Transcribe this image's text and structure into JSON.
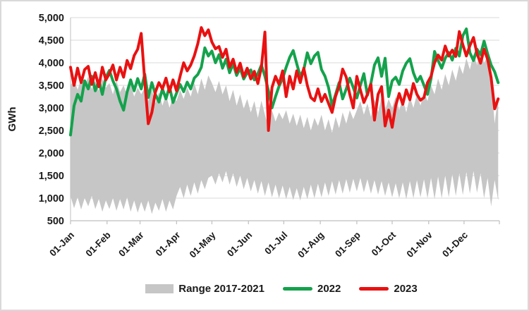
{
  "chart_data": {
    "type": "area",
    "ylabel": "GWh",
    "ylim": [
      500,
      5000
    ],
    "day_step": 3,
    "axis_end_day": 364,
    "grid": "horizontal",
    "legend_position": "bottom",
    "yticks": [
      {
        "v": 500,
        "label": "500"
      },
      {
        "v": 1000,
        "label": "1,000"
      },
      {
        "v": 1500,
        "label": "1,500"
      },
      {
        "v": 2000,
        "label": "2,000"
      },
      {
        "v": 2500,
        "label": "2,500"
      },
      {
        "v": 3000,
        "label": "3,000"
      },
      {
        "v": 3500,
        "label": "3,500"
      },
      {
        "v": 4000,
        "label": "4,000"
      },
      {
        "v": 4500,
        "label": "4,500"
      },
      {
        "v": 5000,
        "label": "5,000"
      }
    ],
    "months": [
      {
        "label": "01-Jan",
        "day": 0
      },
      {
        "label": "01-Feb",
        "day": 31
      },
      {
        "label": "01-Mar",
        "day": 59
      },
      {
        "label": "01-Apr",
        "day": 90
      },
      {
        "label": "01-May",
        "day": 120
      },
      {
        "label": "01-Jun",
        "day": 151
      },
      {
        "label": "01-Jul",
        "day": 181
      },
      {
        "label": "01-Aug",
        "day": 212
      },
      {
        "label": "01-Sep",
        "day": 243
      },
      {
        "label": "01-Oct",
        "day": 273
      },
      {
        "label": "01-Nov",
        "day": 304
      },
      {
        "label": "01-Dec",
        "day": 334
      }
    ],
    "colors": {
      "band": "#c6c6c6",
      "green_2022": "#14a24c",
      "red_2023": "#e91111",
      "grid": "#d9d9d9",
      "axis": "#bfbfbf",
      "text": "#1a1a1a"
    },
    "band": {
      "label": "Range 2017-2021",
      "high": [
        3500,
        3620,
        3400,
        3650,
        3480,
        3700,
        3420,
        3600,
        3380,
        3650,
        3450,
        3550,
        3300,
        3600,
        3350,
        3500,
        3280,
        3520,
        3250,
        3450,
        3300,
        3450,
        3150,
        3400,
        3100,
        3350,
        3050,
        3300,
        3000,
        3250,
        3150,
        3400,
        3200,
        3450,
        3250,
        3550,
        3300,
        3650,
        3400,
        3720,
        3550,
        3350,
        3600,
        3300,
        3500,
        3150,
        3400,
        3050,
        3300,
        2980,
        3200,
        2900,
        3150,
        2780,
        3160,
        2850,
        2600,
        2950,
        2700,
        2900,
        2750,
        2950,
        2650,
        2870,
        2600,
        2850,
        2550,
        2800,
        2500,
        2780,
        2600,
        2850,
        2500,
        2750,
        2450,
        2800,
        2550,
        2900,
        2650,
        2950,
        2750,
        2950,
        3150,
        2850,
        3100,
        2800,
        3200,
        2900,
        3250,
        2950,
        3200,
        3000,
        3250,
        2950,
        3200,
        2900,
        3250,
        3000,
        3300,
        3050,
        3350,
        3150,
        3500,
        3300,
        3650,
        3400,
        3750,
        3500,
        3850,
        3600,
        3950,
        3750,
        4100,
        3850,
        4200,
        3950,
        4300,
        4000,
        4150,
        3700,
        2650,
        3300
      ],
      "low": [
        1050,
        780,
        1020,
        750,
        1000,
        820,
        1050,
        760,
        980,
        700,
        950,
        760,
        1000,
        720,
        980,
        750,
        1020,
        700,
        950,
        680,
        920,
        700,
        950,
        650,
        900,
        720,
        980,
        700,
        950,
        750,
        1050,
        1250,
        1000,
        1300,
        1050,
        1350,
        1100,
        1400,
        1200,
        1450,
        1500,
        1300,
        1550,
        1350,
        1600,
        1300,
        1550,
        1250,
        1500,
        1200,
        1450,
        1150,
        1400,
        1100,
        1380,
        1050,
        1350,
        1020,
        1300,
        1000,
        1280,
        980,
        1250,
        960,
        1220,
        950,
        1250,
        980,
        1300,
        1000,
        1320,
        1020,
        1350,
        1050,
        1380,
        1080,
        1400,
        1100,
        1420,
        1120,
        1430,
        1150,
        1450,
        1130,
        1420,
        1100,
        1400,
        1080,
        1380,
        1050,
        1350,
        1020,
        1330,
        1000,
        1350,
        980,
        1380,
        1000,
        1400,
        1020,
        1420,
        1000,
        1450,
        980,
        1480,
        1000,
        1500,
        1020,
        1530,
        1050,
        1550,
        1070,
        1580,
        1100,
        1600,
        1120,
        1550,
        1000,
        1450,
        820,
        1400,
        950
      ]
    },
    "series": [
      {
        "name": "2022",
        "color_key": "green_2022",
        "values": [
          2400,
          3050,
          3300,
          3150,
          3600,
          3420,
          3700,
          3380,
          3600,
          3300,
          3680,
          3830,
          3600,
          3420,
          3150,
          2950,
          3350,
          3620,
          3380,
          3650,
          3420,
          3750,
          3230,
          3560,
          3300,
          3130,
          3420,
          3200,
          3470,
          3120,
          3330,
          3520,
          3360,
          3570,
          3420,
          3660,
          3740,
          3900,
          4330,
          4150,
          4260,
          4000,
          4180,
          3880,
          4080,
          3780,
          3980,
          3720,
          3880,
          3640,
          3780,
          3840,
          3620,
          3760,
          3950,
          3700,
          3380,
          3000,
          3250,
          3480,
          3650,
          3900,
          4120,
          4270,
          3980,
          3700,
          3850,
          4220,
          3980,
          4150,
          4230,
          3850,
          3700,
          3450,
          3050,
          3300,
          3560,
          3200,
          3420,
          3660,
          3450,
          3220,
          3500,
          3760,
          3280,
          3550,
          3950,
          4110,
          3700,
          4100,
          3250,
          3600,
          3680,
          3520,
          3820,
          3990,
          4090,
          3780,
          3580,
          3700,
          3500,
          3300,
          3650,
          4250,
          4050,
          3880,
          4100,
          4230,
          4060,
          4320,
          4150,
          4600,
          4750,
          4220,
          4050,
          4300,
          4180,
          4480,
          4200,
          3950,
          3800,
          3560
        ]
      },
      {
        "name": "2023",
        "color_key": "red_2023",
        "values": [
          3900,
          3500,
          3880,
          3560,
          3850,
          3920,
          3520,
          3780,
          3470,
          3900,
          3620,
          3760,
          3950,
          3620,
          3900,
          3680,
          4050,
          3870,
          4160,
          4300,
          4650,
          3600,
          2650,
          2900,
          3350,
          3560,
          3420,
          3660,
          3360,
          3620,
          3380,
          3700,
          4000,
          3820,
          3950,
          4150,
          4420,
          4780,
          4600,
          4730,
          4460,
          4310,
          4360,
          4120,
          4300,
          3900,
          4080,
          3790,
          3990,
          3690,
          3880,
          3640,
          3810,
          3540,
          3900,
          4680,
          2500,
          3450,
          3700,
          3520,
          3820,
          3250,
          3700,
          3420,
          3820,
          3560,
          3880,
          3500,
          3230,
          3160,
          3420,
          3140,
          3300,
          3100,
          2900,
          3260,
          3480,
          3860,
          3680,
          3300,
          3000,
          3700,
          3400,
          3120,
          3300,
          3520,
          2730,
          3300,
          3470,
          2600,
          2950,
          2570,
          3050,
          3320,
          3080,
          3400,
          3180,
          3540,
          3300,
          3170,
          3230,
          3560,
          3700,
          4000,
          4170,
          4060,
          4370,
          4150,
          4280,
          4140,
          4690,
          4400,
          4150,
          4380,
          4560,
          4200,
          3990,
          4300,
          4080,
          3670,
          2980,
          3200
        ]
      }
    ]
  },
  "legend": {
    "range_label": "Range 2017-2021",
    "y2022_label": "2022",
    "y2023_label": "2023"
  }
}
